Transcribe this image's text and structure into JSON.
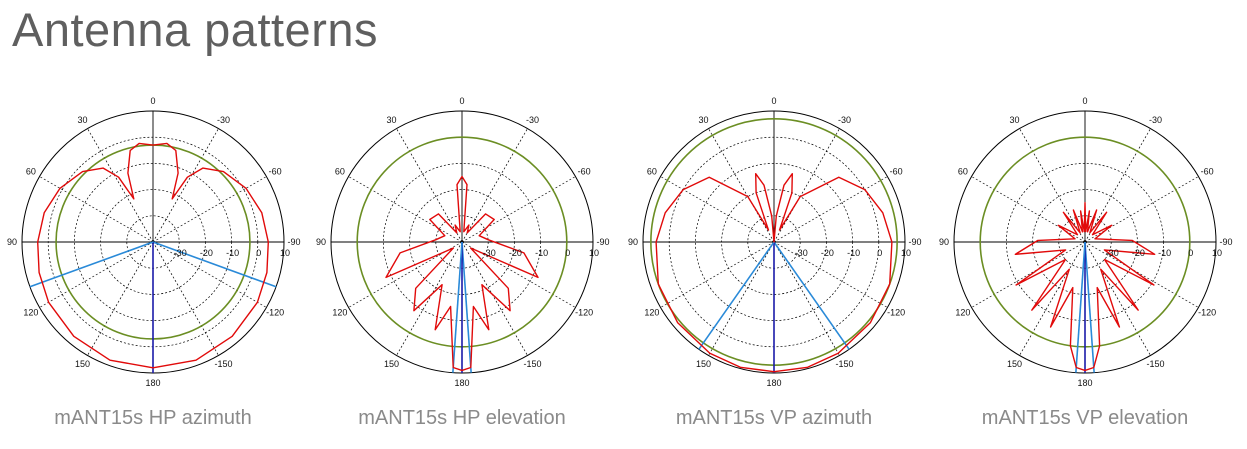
{
  "page": {
    "title": "Antenna patterns"
  },
  "chart_data": [
    {
      "type": "polar",
      "caption": "mANT15s HP azimuth",
      "angle_labels": [
        "0",
        "-30",
        "-60",
        "-90",
        "-120",
        "-150",
        "180",
        "150",
        "120",
        "90",
        "60",
        "30"
      ],
      "radial_labels": [
        "-30",
        "-20",
        "-10",
        "0",
        "10"
      ],
      "rlim": [
        -40,
        10
      ],
      "grid": true,
      "reference_circle_db": -3,
      "pattern": [
        [
          0,
          -3
        ],
        [
          8,
          -2
        ],
        [
          14,
          -4
        ],
        [
          20,
          -12
        ],
        [
          24,
          -22
        ],
        [
          28,
          -12
        ],
        [
          34,
          -6
        ],
        [
          45,
          -2
        ],
        [
          60,
          1
        ],
        [
          75,
          3
        ],
        [
          90,
          4
        ],
        [
          105,
          5
        ],
        [
          120,
          6
        ],
        [
          140,
          7
        ],
        [
          160,
          8
        ],
        [
          180,
          8
        ]
      ],
      "symmetric": true,
      "marker_lines_deg": [
        110,
        180,
        250
      ]
    },
    {
      "type": "polar",
      "caption": "mANT15s HP elevation",
      "angle_labels": [
        "0",
        "-30",
        "-60",
        "-90",
        "-120",
        "-150",
        "180",
        "150",
        "120",
        "90",
        "60",
        "30"
      ],
      "radial_labels": [
        "-30",
        "-20",
        "-10",
        "0",
        "10"
      ],
      "rlim": [
        -40,
        10
      ],
      "grid": true,
      "reference_circle_db": 0,
      "pattern": [
        [
          0,
          -15
        ],
        [
          5,
          -18
        ],
        [
          10,
          -36
        ],
        [
          16,
          -35
        ],
        [
          22,
          -33
        ],
        [
          30,
          -36
        ],
        [
          40,
          -26
        ],
        [
          55,
          -25
        ],
        [
          70,
          -33
        ],
        [
          85,
          -30
        ],
        [
          100,
          -16
        ],
        [
          115,
          -8
        ],
        [
          125,
          -36
        ],
        [
          135,
          -15
        ],
        [
          145,
          -8
        ],
        [
          155,
          -22
        ],
        [
          163,
          -5
        ],
        [
          170,
          -15
        ],
        [
          176,
          8
        ],
        [
          180,
          9
        ]
      ],
      "symmetric": true,
      "marker_lines_deg": [
        176,
        180,
        184
      ]
    },
    {
      "type": "polar",
      "caption": "mANT15s VP azimuth",
      "angle_labels": [
        "0",
        "-30",
        "-60",
        "-90",
        "-120",
        "-150",
        "180",
        "150",
        "120",
        "90",
        "60",
        "30"
      ],
      "radial_labels": [
        "-30",
        "-20",
        "-10",
        "0",
        "10"
      ],
      "rlim": [
        -40,
        10
      ],
      "grid": true,
      "reference_circle_db": 7,
      "pattern": [
        [
          0,
          -40
        ],
        [
          5,
          -30
        ],
        [
          10,
          -18
        ],
        [
          15,
          -13
        ],
        [
          20,
          -20
        ],
        [
          25,
          -35
        ],
        [
          30,
          -20
        ],
        [
          45,
          -5
        ],
        [
          60,
          0
        ],
        [
          75,
          3
        ],
        [
          90,
          5
        ],
        [
          110,
          7
        ],
        [
          130,
          8
        ],
        [
          150,
          9
        ],
        [
          165,
          9.5
        ],
        [
          180,
          9.5
        ]
      ],
      "symmetric": true,
      "marker_lines_deg": [
        145,
        180,
        215
      ]
    },
    {
      "type": "polar",
      "caption": "mANT15s VP elevation",
      "angle_labels": [
        "0",
        "-30",
        "-60",
        "-90",
        "-120",
        "-150",
        "180",
        "150",
        "120",
        "90",
        "60",
        "30"
      ],
      "radial_labels": [
        "-30",
        "-20",
        "-10",
        "0",
        "10"
      ],
      "rlim": [
        -40,
        10
      ],
      "grid": true,
      "reference_circle_db": 0,
      "pattern": [
        [
          0,
          -25
        ],
        [
          4,
          -36
        ],
        [
          8,
          -28
        ],
        [
          14,
          -36
        ],
        [
          20,
          -27
        ],
        [
          28,
          -36
        ],
        [
          36,
          -26
        ],
        [
          46,
          -36
        ],
        [
          58,
          -28
        ],
        [
          72,
          -36
        ],
        [
          88,
          -22
        ],
        [
          100,
          -13
        ],
        [
          112,
          -32
        ],
        [
          122,
          -9
        ],
        [
          132,
          -30
        ],
        [
          142,
          -7
        ],
        [
          150,
          -28
        ],
        [
          158,
          -5
        ],
        [
          165,
          -22
        ],
        [
          172,
          0
        ],
        [
          176,
          8
        ],
        [
          180,
          9
        ]
      ],
      "symmetric": true,
      "marker_lines_deg": [
        176,
        180,
        184
      ]
    }
  ],
  "colors": {
    "pattern": "#e10a0a",
    "reference_circle": "#6b8e23",
    "marker_line": "#2a8ad8",
    "center_line": "#1a1aa8",
    "grid": "#000000",
    "title": "#5f5f5f",
    "caption": "#8a8a8a"
  }
}
